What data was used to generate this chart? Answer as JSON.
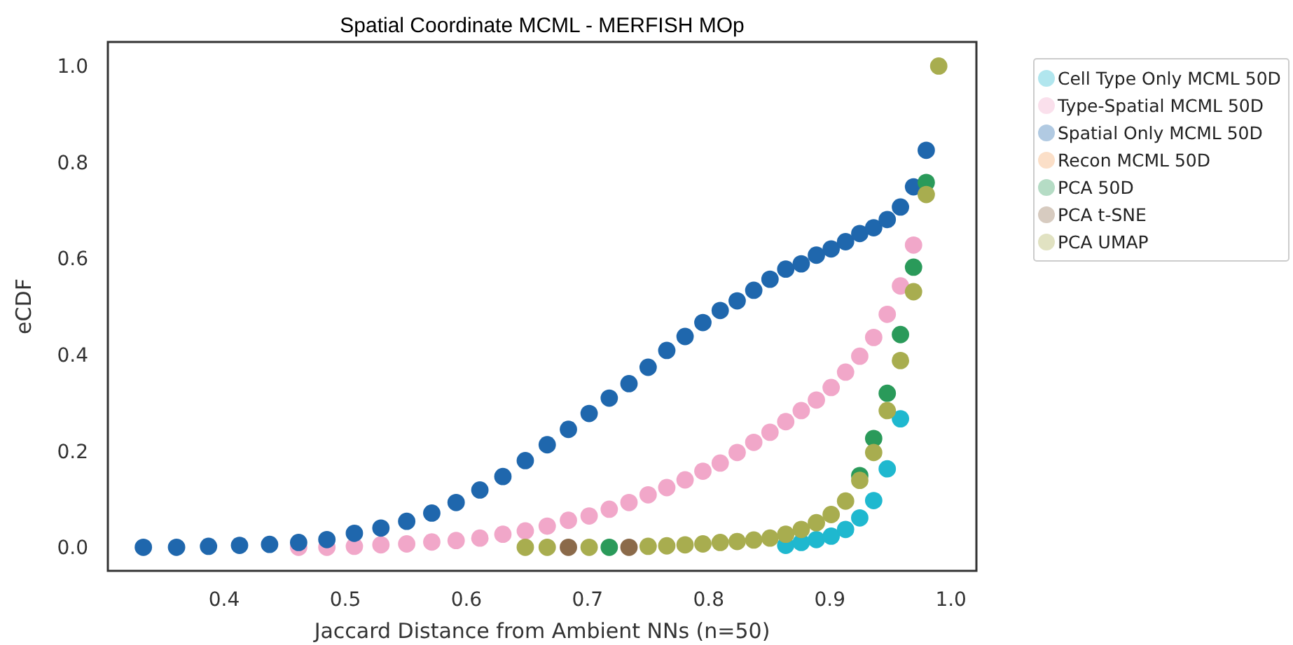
{
  "chart_data": {
    "type": "scatter",
    "title": "Spatial  Coordinate  MCML - MERFISH MOp",
    "xlabel": "Jaccard Distance from Ambient NNs (n=50)",
    "ylabel": "eCDF",
    "x": [
      0.3333,
      0.3607,
      0.3871,
      0.4127,
      0.4375,
      0.4615,
      0.4848,
      0.5075,
      0.5294,
      0.5507,
      0.5714,
      0.5915,
      0.6111,
      0.6301,
      0.6486,
      0.6667,
      0.6842,
      0.7013,
      0.7179,
      0.7342,
      0.75,
      0.7654,
      0.7805,
      0.7952,
      0.8095,
      0.8235,
      0.8372,
      0.8506,
      0.8636,
      0.8764,
      0.8889,
      0.9011,
      0.913,
      0.9247,
      0.9362,
      0.9474,
      0.9583,
      0.9691,
      0.9796,
      0.9899
    ],
    "series": [
      {
        "name": "Cell Type Only MCML 50D",
        "color": "#1fb8cf",
        "values": [
          null,
          null,
          null,
          null,
          null,
          null,
          null,
          null,
          null,
          null,
          null,
          null,
          null,
          null,
          null,
          null,
          null,
          null,
          null,
          null,
          null,
          null,
          null,
          null,
          null,
          null,
          null,
          null,
          0.004,
          0.01,
          0.016,
          0.023,
          0.037,
          0.061,
          0.097,
          0.163,
          0.267,
          null,
          null,
          null
        ]
      },
      {
        "name": "Type-Spatial MCML 50D",
        "color": "#f1a7c9",
        "values": [
          null,
          null,
          null,
          null,
          null,
          0,
          0,
          0.002,
          0.005,
          0.007,
          0.011,
          0.014,
          0.019,
          0.027,
          0.034,
          0.044,
          0.056,
          0.065,
          0.079,
          0.093,
          0.109,
          0.124,
          0.14,
          0.158,
          0.175,
          0.197,
          0.218,
          0.239,
          0.261,
          0.284,
          0.306,
          0.332,
          0.364,
          0.397,
          0.436,
          0.484,
          0.543,
          0.628,
          null,
          null
        ]
      },
      {
        "name": "Spatial Only MCML 50D",
        "color": "#1f67ad",
        "values": [
          0,
          0,
          0.002,
          0.004,
          0.006,
          0.01,
          0.016,
          0.029,
          0.04,
          0.054,
          0.071,
          0.093,
          0.119,
          0.147,
          0.18,
          0.213,
          0.245,
          0.278,
          0.31,
          0.34,
          0.374,
          0.409,
          0.438,
          0.467,
          0.492,
          0.512,
          0.534,
          0.557,
          0.578,
          0.589,
          0.607,
          0.62,
          0.635,
          0.652,
          0.664,
          0.681,
          0.707,
          0.749,
          0.825,
          null
        ]
      },
      {
        "name": "Recon MCML 50D",
        "color": "#f4a460",
        "values": [
          null,
          null,
          null,
          null,
          null,
          null,
          null,
          null,
          null,
          null,
          null,
          null,
          null,
          null,
          null,
          null,
          null,
          null,
          null,
          null,
          null,
          null,
          null,
          null,
          null,
          null,
          null,
          null,
          null,
          null,
          null,
          null,
          null,
          null,
          null,
          null,
          null,
          null,
          null,
          null
        ]
      },
      {
        "name": "PCA 50D",
        "color": "#2a9a5a",
        "values": [
          null,
          null,
          null,
          null,
          null,
          null,
          null,
          null,
          null,
          null,
          null,
          null,
          null,
          null,
          null,
          null,
          null,
          null,
          0,
          null,
          null,
          null,
          null,
          null,
          null,
          null,
          null,
          null,
          null,
          null,
          null,
          null,
          null,
          0.149,
          0.226,
          0.32,
          0.442,
          0.582,
          0.758,
          null
        ]
      },
      {
        "name": "PCA t-SNE",
        "color": "#8b6a4a",
        "values": [
          null,
          null,
          null,
          null,
          null,
          null,
          null,
          null,
          null,
          null,
          null,
          null,
          null,
          null,
          null,
          null,
          0,
          null,
          null,
          0,
          null,
          null,
          null,
          null,
          null,
          null,
          null,
          null,
          null,
          null,
          null,
          null,
          null,
          null,
          null,
          null,
          null,
          null,
          null,
          null
        ]
      },
      {
        "name": "PCA UMAP",
        "color": "#a8ad4f",
        "values": [
          null,
          null,
          null,
          null,
          null,
          null,
          null,
          null,
          null,
          null,
          null,
          null,
          null,
          null,
          0,
          0,
          null,
          0,
          null,
          null,
          0.002,
          0.003,
          0.005,
          0.007,
          0.01,
          0.012,
          0.015,
          0.019,
          0.027,
          0.037,
          0.051,
          0.068,
          0.096,
          0.139,
          0.197,
          0.284,
          0.388,
          0.531,
          0.733,
          1.0
        ]
      }
    ],
    "xlim": [
      0.304,
      1.021
    ],
    "ylim": [
      -0.049,
      1.05
    ],
    "xticks": [
      0.4,
      0.5,
      0.6,
      0.7,
      0.8,
      0.9,
      {
        "value": 1,
        "label": "1.0"
      }
    ],
    "yticks": [
      {
        "value": 0,
        "label": "0.0"
      },
      0.2,
      0.4,
      0.6,
      0.8,
      {
        "value": 1,
        "label": "1.0"
      }
    ],
    "grid": false,
    "legend": "right",
    "marker": "circle"
  }
}
